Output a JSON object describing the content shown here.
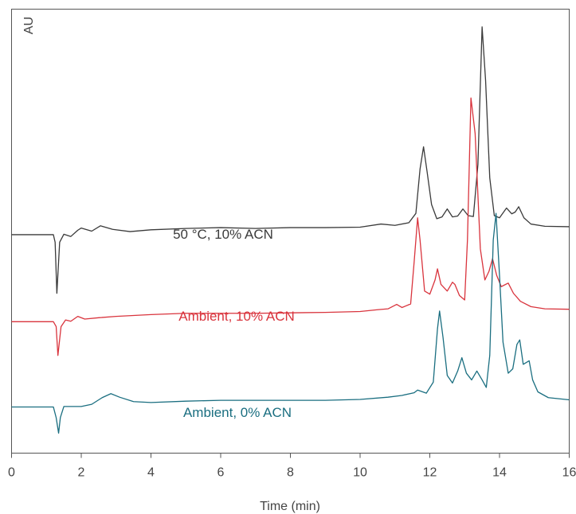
{
  "chart_data": {
    "type": "line",
    "title": "",
    "xlabel": "Time (min)",
    "ylabel": "AU",
    "xlim": [
      0,
      16
    ],
    "ylim": [
      0,
      100
    ],
    "x_ticks": [
      "0",
      "2",
      "4",
      "6",
      "8",
      "10",
      "12",
      "14",
      "16"
    ],
    "grid": false,
    "legend": "inline labels",
    "series": [
      {
        "name": "50 °C, 10% ACN",
        "color": "#3a3a3a",
        "points": [
          [
            0,
            49.2
          ],
          [
            1.2,
            49.2
          ],
          [
            1.25,
            47.5
          ],
          [
            1.3,
            36.0
          ],
          [
            1.38,
            47.5
          ],
          [
            1.5,
            49.3
          ],
          [
            1.7,
            48.8
          ],
          [
            1.9,
            50.2
          ],
          [
            2.0,
            50.7
          ],
          [
            2.3,
            50.0
          ],
          [
            2.55,
            51.2
          ],
          [
            2.9,
            50.4
          ],
          [
            3.4,
            49.9
          ],
          [
            4.0,
            50.3
          ],
          [
            5.0,
            50.6
          ],
          [
            6.0,
            50.8
          ],
          [
            7.0,
            50.6
          ],
          [
            8.0,
            50.8
          ],
          [
            9.0,
            50.8
          ],
          [
            10.0,
            50.9
          ],
          [
            10.6,
            51.6
          ],
          [
            11.0,
            51.3
          ],
          [
            11.4,
            51.9
          ],
          [
            11.6,
            54.0
          ],
          [
            11.72,
            64.0
          ],
          [
            11.82,
            69.0
          ],
          [
            11.92,
            63.5
          ],
          [
            12.05,
            56.0
          ],
          [
            12.2,
            52.8
          ],
          [
            12.35,
            53.2
          ],
          [
            12.5,
            55.0
          ],
          [
            12.65,
            53.2
          ],
          [
            12.8,
            53.4
          ],
          [
            12.95,
            55.0
          ],
          [
            13.1,
            53.5
          ],
          [
            13.25,
            53.3
          ],
          [
            13.38,
            65.0
          ],
          [
            13.5,
            96.0
          ],
          [
            13.6,
            84.0
          ],
          [
            13.72,
            62.0
          ],
          [
            13.85,
            53.5
          ],
          [
            14.0,
            53.0
          ],
          [
            14.2,
            55.2
          ],
          [
            14.35,
            53.9
          ],
          [
            14.45,
            54.3
          ],
          [
            14.55,
            55.5
          ],
          [
            14.7,
            53.0
          ],
          [
            14.9,
            51.6
          ],
          [
            15.3,
            51.1
          ],
          [
            16,
            51.0
          ]
        ]
      },
      {
        "name": "Ambient, 10% ACN",
        "color": "#d9343d",
        "points": [
          [
            0,
            29.6
          ],
          [
            1.2,
            29.6
          ],
          [
            1.28,
            28.5
          ],
          [
            1.33,
            22.0
          ],
          [
            1.42,
            28.5
          ],
          [
            1.55,
            30.0
          ],
          [
            1.7,
            29.7
          ],
          [
            1.9,
            30.8
          ],
          [
            2.1,
            30.2
          ],
          [
            2.5,
            30.5
          ],
          [
            3.0,
            30.8
          ],
          [
            4.0,
            31.2
          ],
          [
            5.0,
            31.5
          ],
          [
            6.0,
            31.5
          ],
          [
            7.0,
            31.5
          ],
          [
            8.0,
            31.6
          ],
          [
            9.0,
            31.7
          ],
          [
            10.0,
            31.9
          ],
          [
            10.5,
            32.3
          ],
          [
            10.8,
            32.5
          ],
          [
            11.05,
            33.5
          ],
          [
            11.2,
            32.8
          ],
          [
            11.45,
            33.6
          ],
          [
            11.55,
            43.0
          ],
          [
            11.65,
            53.0
          ],
          [
            11.72,
            48.0
          ],
          [
            11.85,
            36.5
          ],
          [
            12.0,
            35.8
          ],
          [
            12.15,
            39.0
          ],
          [
            12.22,
            41.5
          ],
          [
            12.32,
            38.0
          ],
          [
            12.5,
            36.5
          ],
          [
            12.65,
            38.5
          ],
          [
            12.72,
            38.0
          ],
          [
            12.85,
            35.5
          ],
          [
            13.0,
            34.5
          ],
          [
            13.08,
            48.0
          ],
          [
            13.18,
            80.0
          ],
          [
            13.3,
            72.0
          ],
          [
            13.45,
            46.0
          ],
          [
            13.58,
            39.0
          ],
          [
            13.7,
            41.0
          ],
          [
            13.8,
            43.8
          ],
          [
            13.92,
            40.0
          ],
          [
            14.05,
            37.5
          ],
          [
            14.25,
            38.3
          ],
          [
            14.4,
            36.0
          ],
          [
            14.6,
            34.2
          ],
          [
            14.9,
            33.0
          ],
          [
            15.3,
            32.5
          ],
          [
            16,
            32.4
          ]
        ]
      },
      {
        "name": "Ambient, 0% ACN",
        "color": "#1a6e80",
        "points": [
          [
            0,
            10.4
          ],
          [
            1.2,
            10.4
          ],
          [
            1.28,
            8.0
          ],
          [
            1.35,
            4.5
          ],
          [
            1.4,
            8.0
          ],
          [
            1.5,
            10.5
          ],
          [
            2.0,
            10.5
          ],
          [
            2.3,
            11.0
          ],
          [
            2.6,
            12.5
          ],
          [
            2.85,
            13.4
          ],
          [
            3.1,
            12.6
          ],
          [
            3.5,
            11.6
          ],
          [
            4.0,
            11.4
          ],
          [
            5.0,
            11.7
          ],
          [
            6.0,
            11.9
          ],
          [
            7.0,
            11.9
          ],
          [
            8.0,
            11.9
          ],
          [
            9.0,
            11.9
          ],
          [
            10.0,
            12.1
          ],
          [
            10.8,
            12.6
          ],
          [
            11.2,
            13.0
          ],
          [
            11.55,
            13.6
          ],
          [
            11.65,
            14.2
          ],
          [
            11.9,
            13.5
          ],
          [
            12.1,
            16.0
          ],
          [
            12.22,
            28.0
          ],
          [
            12.28,
            32.0
          ],
          [
            12.38,
            26.0
          ],
          [
            12.5,
            17.5
          ],
          [
            12.65,
            15.8
          ],
          [
            12.8,
            18.5
          ],
          [
            12.92,
            21.5
          ],
          [
            13.05,
            18.0
          ],
          [
            13.2,
            16.5
          ],
          [
            13.35,
            18.5
          ],
          [
            13.5,
            16.5
          ],
          [
            13.62,
            14.8
          ],
          [
            13.72,
            22.0
          ],
          [
            13.82,
            48.0
          ],
          [
            13.9,
            54.0
          ],
          [
            14.0,
            40.0
          ],
          [
            14.1,
            25.0
          ],
          [
            14.25,
            18.0
          ],
          [
            14.38,
            19.0
          ],
          [
            14.5,
            24.5
          ],
          [
            14.58,
            25.5
          ],
          [
            14.68,
            20.0
          ],
          [
            14.85,
            20.8
          ],
          [
            14.95,
            16.5
          ],
          [
            15.1,
            13.8
          ],
          [
            15.4,
            12.5
          ],
          [
            16,
            12.0
          ]
        ]
      }
    ],
    "labels": [
      {
        "text": "50 °C, 10% ACN",
        "color": "#3a3a3a",
        "series": 0
      },
      {
        "text": "Ambient, 10% ACN",
        "color": "#d9343d",
        "series": 1
      },
      {
        "text": "Ambient, 0% ACN",
        "color": "#1a6e80",
        "series": 2
      }
    ]
  }
}
